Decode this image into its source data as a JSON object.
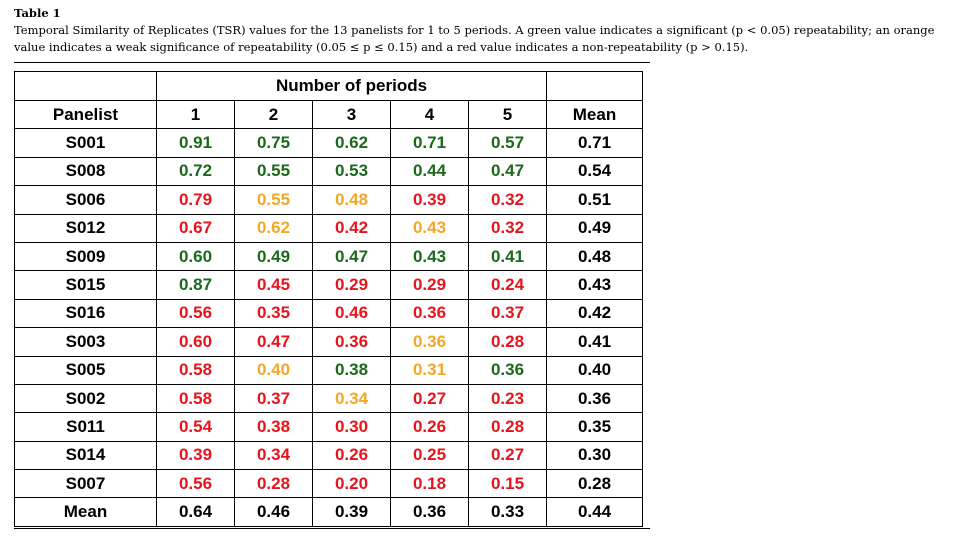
{
  "caption": {
    "label": "Table 1",
    "text": "Temporal Similarity of Replicates (TSR) values for the 13 panelists for 1 to 5 periods. A green value indicates a significant (p < 0.05) repeatability; an orange value indicates a weak significance of repeatability (0.05 ≤ p ≤ 0.15) and a red value indicates a non-repeatability (p > 0.15)."
  },
  "colors": {
    "green": "#1a6a1a",
    "orange": "#f5a623",
    "red": "#e8141c",
    "black": "#000000"
  },
  "table": {
    "group_header": "Number of periods",
    "columns": [
      "Panelist",
      "1",
      "2",
      "3",
      "4",
      "5",
      "Mean"
    ],
    "rows": [
      {
        "panelist": "S001",
        "cells": [
          {
            "v": "0.91",
            "c": "green"
          },
          {
            "v": "0.75",
            "c": "green"
          },
          {
            "v": "0.62",
            "c": "green"
          },
          {
            "v": "0.71",
            "c": "green"
          },
          {
            "v": "0.57",
            "c": "green"
          }
        ],
        "mean": "0.71"
      },
      {
        "panelist": "S008",
        "cells": [
          {
            "v": "0.72",
            "c": "green"
          },
          {
            "v": "0.55",
            "c": "green"
          },
          {
            "v": "0.53",
            "c": "green"
          },
          {
            "v": "0.44",
            "c": "green"
          },
          {
            "v": "0.47",
            "c": "green"
          }
        ],
        "mean": "0.54"
      },
      {
        "panelist": "S006",
        "cells": [
          {
            "v": "0.79",
            "c": "red"
          },
          {
            "v": "0.55",
            "c": "orange"
          },
          {
            "v": "0.48",
            "c": "orange"
          },
          {
            "v": "0.39",
            "c": "red"
          },
          {
            "v": "0.32",
            "c": "red"
          }
        ],
        "mean": "0.51"
      },
      {
        "panelist": "S012",
        "cells": [
          {
            "v": "0.67",
            "c": "red"
          },
          {
            "v": "0.62",
            "c": "orange"
          },
          {
            "v": "0.42",
            "c": "red"
          },
          {
            "v": "0.43",
            "c": "orange"
          },
          {
            "v": "0.32",
            "c": "red"
          }
        ],
        "mean": "0.49"
      },
      {
        "panelist": "S009",
        "cells": [
          {
            "v": "0.60",
            "c": "green"
          },
          {
            "v": "0.49",
            "c": "green"
          },
          {
            "v": "0.47",
            "c": "green"
          },
          {
            "v": "0.43",
            "c": "green"
          },
          {
            "v": "0.41",
            "c": "green"
          }
        ],
        "mean": "0.48"
      },
      {
        "panelist": "S015",
        "cells": [
          {
            "v": "0.87",
            "c": "green"
          },
          {
            "v": "0.45",
            "c": "red"
          },
          {
            "v": "0.29",
            "c": "red"
          },
          {
            "v": "0.29",
            "c": "red"
          },
          {
            "v": "0.24",
            "c": "red"
          }
        ],
        "mean": "0.43"
      },
      {
        "panelist": "S016",
        "cells": [
          {
            "v": "0.56",
            "c": "red"
          },
          {
            "v": "0.35",
            "c": "red"
          },
          {
            "v": "0.46",
            "c": "red"
          },
          {
            "v": "0.36",
            "c": "red"
          },
          {
            "v": "0.37",
            "c": "red"
          }
        ],
        "mean": "0.42"
      },
      {
        "panelist": "S003",
        "cells": [
          {
            "v": "0.60",
            "c": "red"
          },
          {
            "v": "0.47",
            "c": "red"
          },
          {
            "v": "0.36",
            "c": "red"
          },
          {
            "v": "0.36",
            "c": "orange"
          },
          {
            "v": "0.28",
            "c": "red"
          }
        ],
        "mean": "0.41"
      },
      {
        "panelist": "S005",
        "cells": [
          {
            "v": "0.58",
            "c": "red"
          },
          {
            "v": "0.40",
            "c": "orange"
          },
          {
            "v": "0.38",
            "c": "green"
          },
          {
            "v": "0.31",
            "c": "orange"
          },
          {
            "v": "0.36",
            "c": "green"
          }
        ],
        "mean": "0.40"
      },
      {
        "panelist": "S002",
        "cells": [
          {
            "v": "0.58",
            "c": "red"
          },
          {
            "v": "0.37",
            "c": "red"
          },
          {
            "v": "0.34",
            "c": "orange"
          },
          {
            "v": "0.27",
            "c": "red"
          },
          {
            "v": "0.23",
            "c": "red"
          }
        ],
        "mean": "0.36"
      },
      {
        "panelist": "S011",
        "cells": [
          {
            "v": "0.54",
            "c": "red"
          },
          {
            "v": "0.38",
            "c": "red"
          },
          {
            "v": "0.30",
            "c": "red"
          },
          {
            "v": "0.26",
            "c": "red"
          },
          {
            "v": "0.28",
            "c": "red"
          }
        ],
        "mean": "0.35"
      },
      {
        "panelist": "S014",
        "cells": [
          {
            "v": "0.39",
            "c": "red"
          },
          {
            "v": "0.34",
            "c": "red"
          },
          {
            "v": "0.26",
            "c": "red"
          },
          {
            "v": "0.25",
            "c": "red"
          },
          {
            "v": "0.27",
            "c": "red"
          }
        ],
        "mean": "0.30"
      },
      {
        "panelist": "S007",
        "cells": [
          {
            "v": "0.56",
            "c": "red"
          },
          {
            "v": "0.28",
            "c": "red"
          },
          {
            "v": "0.20",
            "c": "red"
          },
          {
            "v": "0.18",
            "c": "red"
          },
          {
            "v": "0.15",
            "c": "red"
          }
        ],
        "mean": "0.28"
      }
    ],
    "footer": {
      "label": "Mean",
      "values": [
        "0.64",
        "0.46",
        "0.39",
        "0.36",
        "0.33"
      ],
      "mean": "0.44"
    }
  }
}
